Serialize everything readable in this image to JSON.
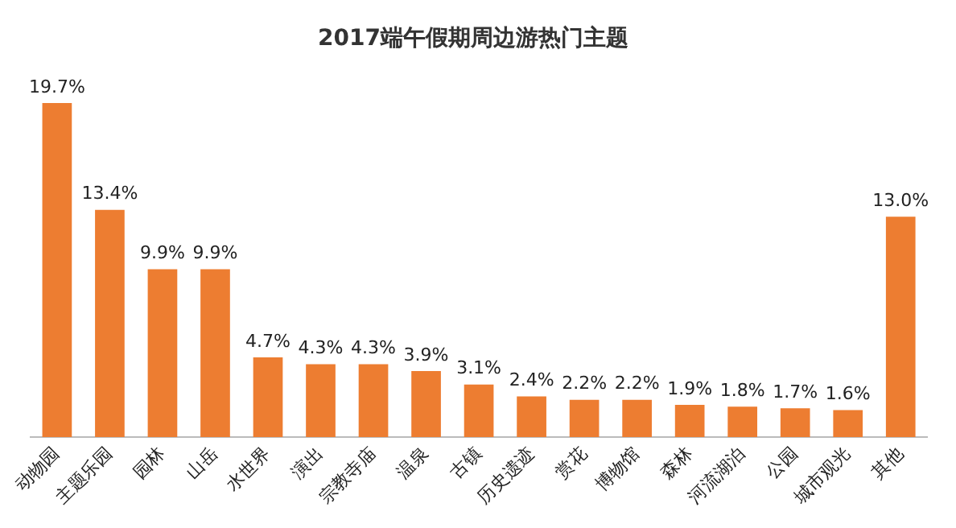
{
  "chart_data": {
    "type": "bar",
    "title": "2017端午假期周边游热门主题",
    "categories": [
      "动物园",
      "主题乐园",
      "园林",
      "山岳",
      "水世界",
      "演出",
      "宗教寺庙",
      "温泉",
      "古镇",
      "历史遗迹",
      "赏花",
      "博物馆",
      "森林",
      "河流湖泊",
      "公园",
      "城市观光",
      "其他"
    ],
    "values": [
      19.7,
      13.4,
      9.9,
      9.9,
      4.7,
      4.3,
      4.3,
      3.9,
      3.1,
      2.4,
      2.2,
      2.2,
      1.9,
      1.8,
      1.7,
      1.6,
      13.0
    ],
    "value_labels": [
      "19.7%",
      "13.4%",
      "9.9%",
      "9.9%",
      "4.7%",
      "4.3%",
      "4.3%",
      "3.9%",
      "3.1%",
      "2.4%",
      "2.2%",
      "2.2%",
      "1.9%",
      "1.8%",
      "1.7%",
      "1.6%",
      "13.0%"
    ],
    "color": "#ed7d31",
    "grid": false,
    "legend": false
  }
}
